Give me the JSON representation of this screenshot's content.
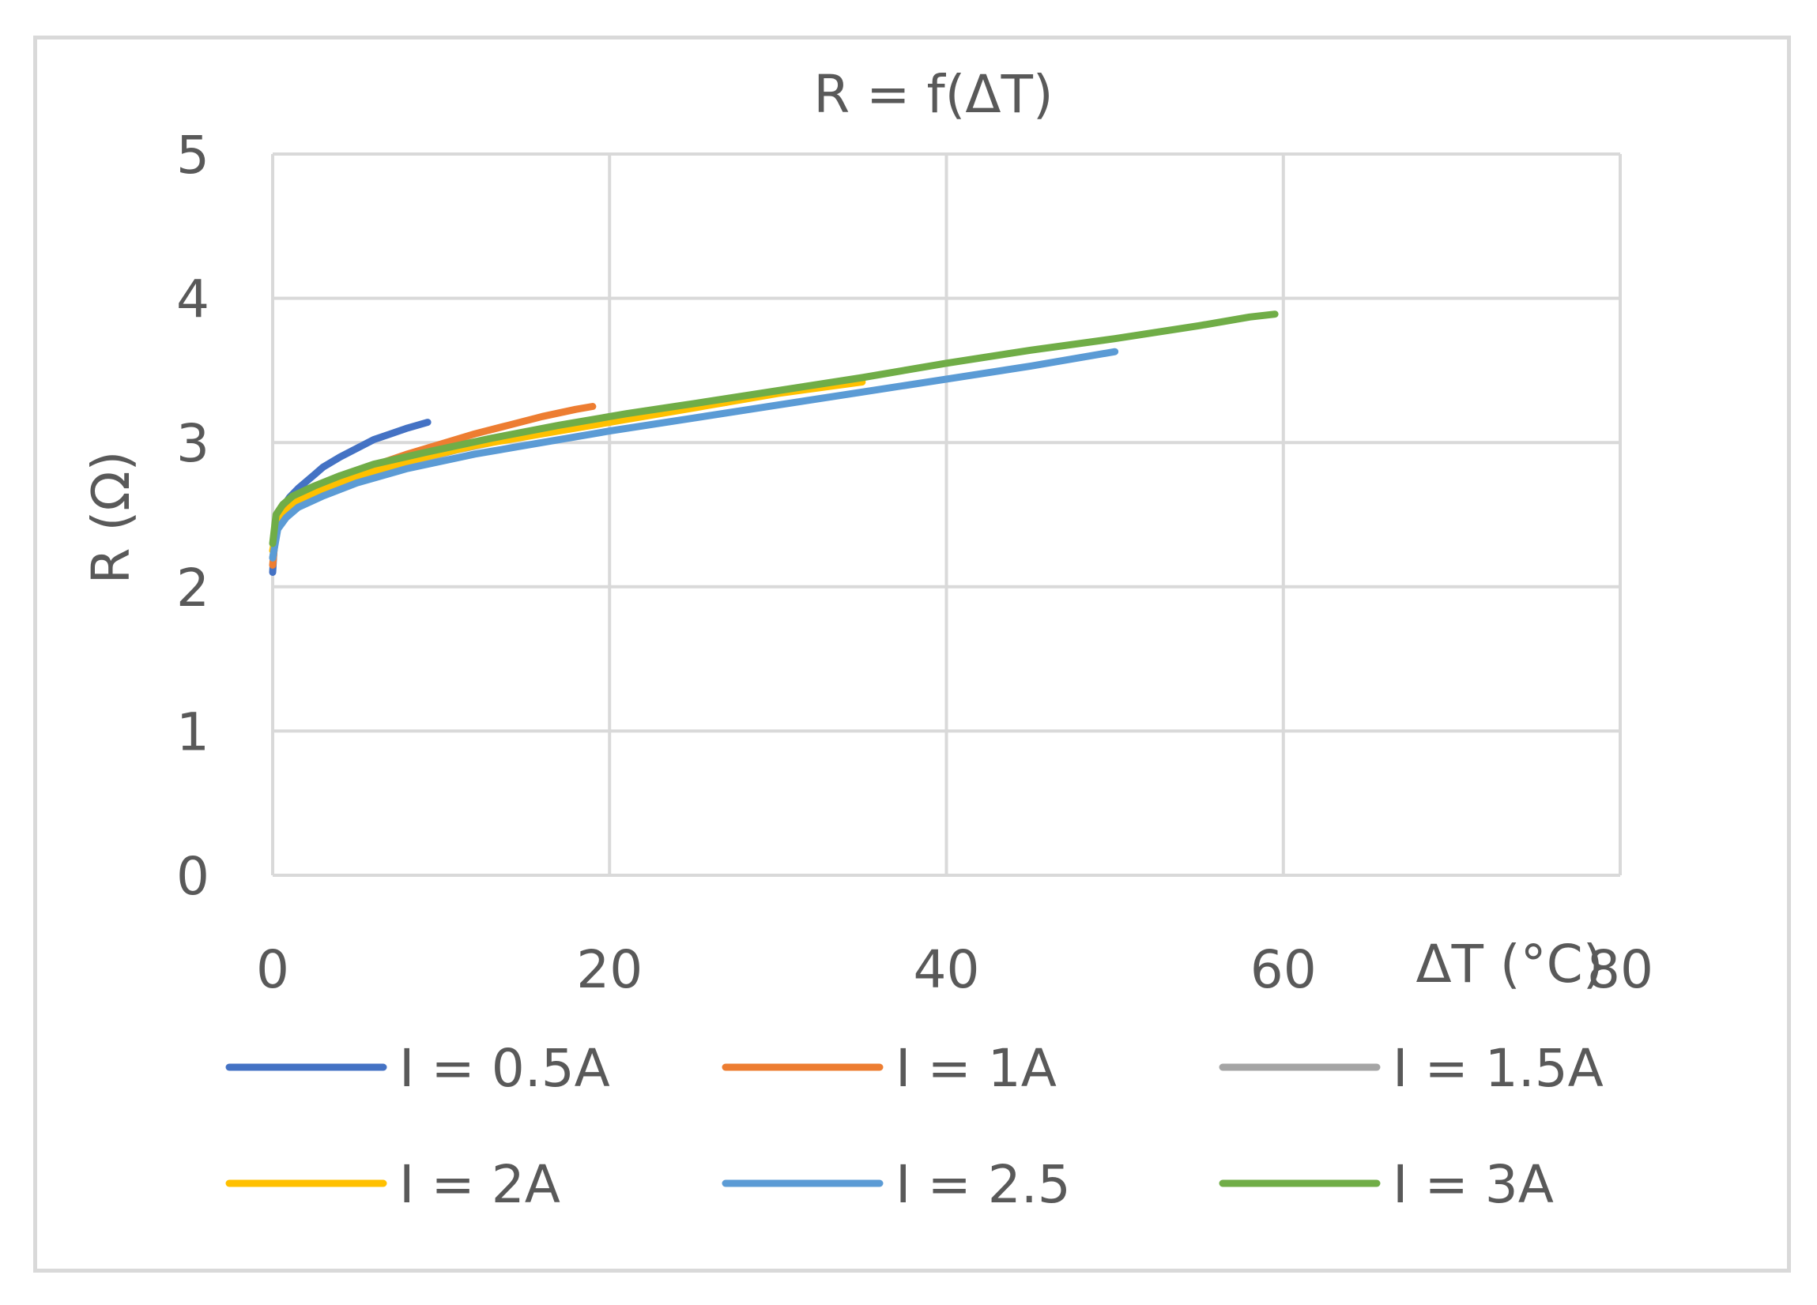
{
  "chart_data": {
    "type": "line",
    "title": "R = f(ΔT)",
    "xlabel": "ΔT (°C)",
    "ylabel": "R (Ω)",
    "xlim": [
      0,
      80
    ],
    "ylim": [
      0,
      5
    ],
    "x_ticks": [
      "0",
      "20",
      "40",
      "60",
      "80"
    ],
    "y_ticks": [
      "0",
      "1",
      "2",
      "3",
      "4",
      "5"
    ],
    "grid": true,
    "legend_position": "bottom",
    "series": [
      {
        "name": "I = 0.5A",
        "color": "#4472C4",
        "x": [
          0,
          0.1,
          0.3,
          0.6,
          1,
          1.5,
          2,
          2.5,
          3,
          4,
          5,
          6,
          7,
          8,
          9.2
        ],
        "y": [
          2.1,
          2.3,
          2.45,
          2.55,
          2.62,
          2.68,
          2.73,
          2.78,
          2.83,
          2.9,
          2.96,
          3.02,
          3.06,
          3.1,
          3.14
        ]
      },
      {
        "name": "I = 1A",
        "color": "#ED7D31",
        "x": [
          0,
          0.2,
          0.5,
          1,
          2,
          3,
          4,
          6,
          8,
          10,
          12,
          14,
          16,
          18,
          19
        ],
        "y": [
          2.15,
          2.4,
          2.5,
          2.57,
          2.65,
          2.71,
          2.76,
          2.84,
          2.92,
          2.99,
          3.06,
          3.12,
          3.18,
          3.23,
          3.25
        ]
      },
      {
        "name": "I = 1.5A",
        "color": "#A5A5A5",
        "x": [
          0,
          0.3,
          0.7,
          1.5,
          3,
          5,
          8,
          11,
          15,
          19,
          23,
          27
        ],
        "y": [
          2.2,
          2.42,
          2.5,
          2.58,
          2.67,
          2.76,
          2.86,
          2.95,
          3.05,
          3.13,
          3.21,
          3.28
        ]
      },
      {
        "name": "I = 2A",
        "color": "#FFC000",
        "x": [
          0,
          0.3,
          0.8,
          1.5,
          3,
          5,
          8,
          12,
          16,
          20,
          25,
          30,
          35
        ],
        "y": [
          2.25,
          2.45,
          2.52,
          2.6,
          2.68,
          2.77,
          2.87,
          2.98,
          3.06,
          3.14,
          3.24,
          3.34,
          3.42
        ]
      },
      {
        "name": "I = 2.5",
        "color": "#5B9BD5",
        "x": [
          0,
          0.3,
          0.8,
          1.5,
          3,
          5,
          8,
          12,
          16,
          20,
          25,
          30,
          35,
          40,
          45,
          50
        ],
        "y": [
          2.2,
          2.4,
          2.48,
          2.55,
          2.63,
          2.72,
          2.82,
          2.92,
          3.0,
          3.08,
          3.17,
          3.26,
          3.35,
          3.44,
          3.53,
          3.63
        ]
      },
      {
        "name": "I = 3A",
        "color": "#70AD47",
        "x": [
          0,
          0.2,
          0.6,
          1.2,
          2.5,
          4,
          6,
          9,
          13,
          17,
          21,
          25,
          30,
          35,
          40,
          45,
          50,
          55,
          58,
          59.5
        ],
        "y": [
          2.3,
          2.5,
          2.57,
          2.63,
          2.7,
          2.77,
          2.85,
          2.93,
          3.03,
          3.12,
          3.2,
          3.27,
          3.36,
          3.45,
          3.55,
          3.64,
          3.72,
          3.81,
          3.87,
          3.89
        ]
      }
    ]
  }
}
